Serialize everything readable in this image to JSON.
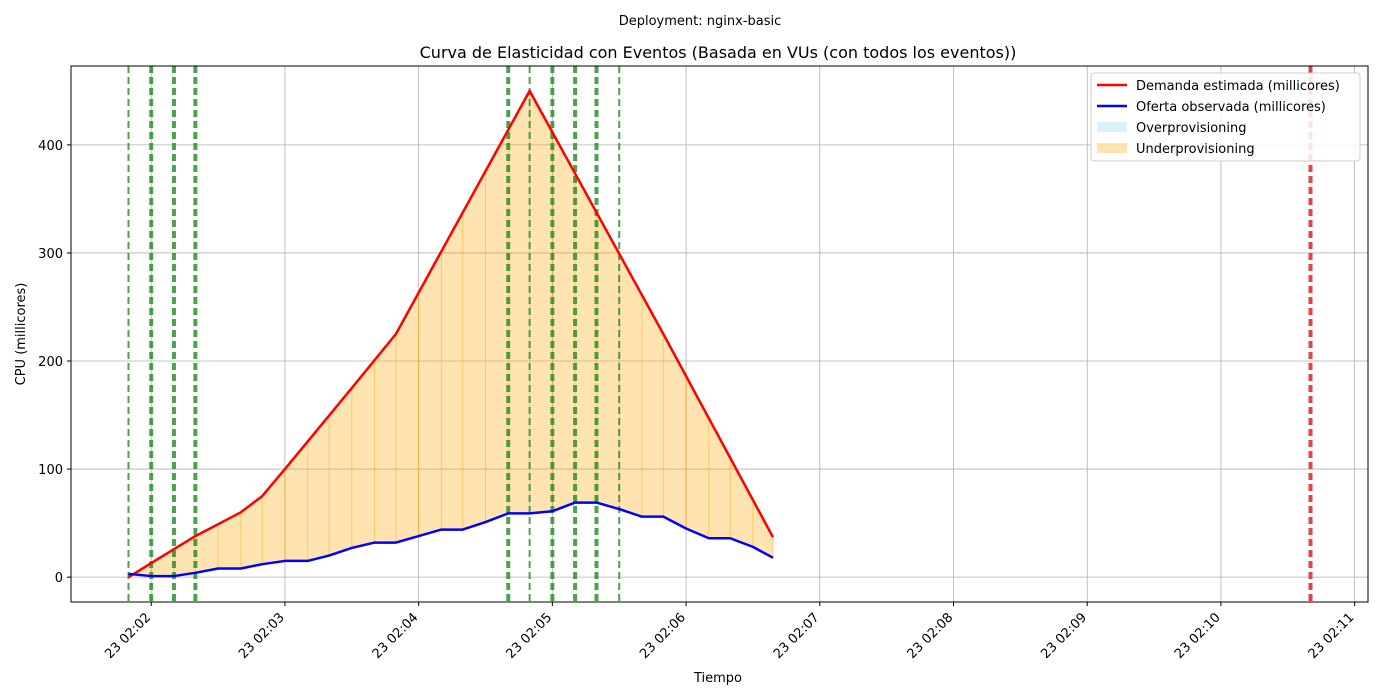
{
  "suptitle": "Deployment: nginx-basic",
  "chart_data": {
    "type": "line",
    "title": "Curva de Elasticidad con Eventos (Basada en VUs (con todos los eventos))",
    "xlabel": "Tiempo",
    "ylabel": "CPU (millicores)",
    "x_unit": "minutes",
    "xlim": [
      "02:01.4",
      "02:11.1"
    ],
    "ylim": [
      -23,
      473
    ],
    "x_ticks": [
      {
        "at": "02:02",
        "label": "23 02:02"
      },
      {
        "at": "02:03",
        "label": "23 02:03"
      },
      {
        "at": "02:04",
        "label": "23 02:04"
      },
      {
        "at": "02:05",
        "label": "23 02:05"
      },
      {
        "at": "02:06",
        "label": "23 02:06"
      },
      {
        "at": "02:07",
        "label": "23 02:07"
      },
      {
        "at": "02:08",
        "label": "23 02:08"
      },
      {
        "at": "02:09",
        "label": "23 02:09"
      },
      {
        "at": "02:10",
        "label": "23 02:10"
      },
      {
        "at": "02:11",
        "label": "23 02:11"
      }
    ],
    "y_ticks": [
      0,
      100,
      200,
      300,
      400
    ],
    "grid": true,
    "legend_position": "top-right",
    "series": [
      {
        "name": "Demanda estimada (millicores)",
        "color": "#ff0000",
        "points": [
          [
            "02:01.83",
            0
          ],
          [
            "02:02.00",
            13
          ],
          [
            "02:02.33",
            38
          ],
          [
            "02:02.67",
            60
          ],
          [
            "02:02.83",
            75
          ],
          [
            "02:03.00",
            100
          ],
          [
            "02:03.50",
            175
          ],
          [
            "02:03.83",
            225
          ],
          [
            "02:04.83",
            450
          ],
          [
            "02:05.83",
            225
          ],
          [
            "02:06.65",
            37
          ]
        ]
      },
      {
        "name": "Oferta observada (millicores)",
        "color": "#0000ff",
        "points": [
          [
            "02:01.83",
            3
          ],
          [
            "02:02.00",
            1
          ],
          [
            "02:02.17",
            1
          ],
          [
            "02:02.33",
            4
          ],
          [
            "02:02.50",
            8
          ],
          [
            "02:02.67",
            8
          ],
          [
            "02:02.83",
            12
          ],
          [
            "02:03.00",
            15
          ],
          [
            "02:03.17",
            15
          ],
          [
            "02:03.33",
            20
          ],
          [
            "02:03.50",
            27
          ],
          [
            "02:03.67",
            32
          ],
          [
            "02:03.83",
            32
          ],
          [
            "02:04.00",
            38
          ],
          [
            "02:04.17",
            44
          ],
          [
            "02:04.33",
            44
          ],
          [
            "02:04.50",
            51
          ],
          [
            "02:04.67",
            59
          ],
          [
            "02:04.83",
            59
          ],
          [
            "02:05.00",
            61
          ],
          [
            "02:05.17",
            69
          ],
          [
            "02:05.33",
            69
          ],
          [
            "02:05.50",
            63
          ],
          [
            "02:05.67",
            56
          ],
          [
            "02:05.83",
            56
          ],
          [
            "02:06.00",
            45
          ],
          [
            "02:06.17",
            36
          ],
          [
            "02:06.33",
            36
          ],
          [
            "02:06.50",
            28
          ],
          [
            "02:06.65",
            18
          ]
        ]
      }
    ],
    "fills": [
      {
        "name": "Overprovisioning",
        "color": "#87ceeb"
      },
      {
        "name": "Underprovisioning",
        "color": "#ffa500"
      }
    ],
    "events": {
      "scale_events_color": "#228b22",
      "scale_events": [
        "02:01.83",
        "02:02.00",
        "02:02.17",
        "02:02.33",
        "02:04.67",
        "02:04.83",
        "02:05.00",
        "02:05.17",
        "02:05.33",
        "02:05.50"
      ],
      "scale_events_bold": [
        "02:02.00",
        "02:02.17",
        "02:02.33",
        "02:04.67",
        "02:05.00",
        "02:05.17",
        "02:05.33"
      ],
      "end_event_color": "#e03030",
      "end_event": "02:10.67"
    }
  }
}
